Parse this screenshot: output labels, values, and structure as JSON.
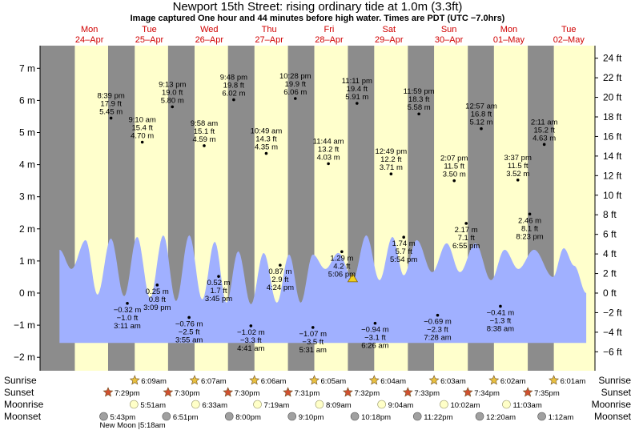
{
  "header": {
    "title": "Newport 15th Street: rising  ordinary tide at 1.0m (3.3ft)",
    "subtitle": "Image captured One hour and 44 minutes before high water. Times are PDT (UTC −7.0hrs)"
  },
  "colors": {
    "day": "#ffffcc",
    "night": "#8c8c8c",
    "tide": "#a0b0ff",
    "day_label": "#d00000",
    "sun_marker": "#e8c040",
    "sunset_marker": "#d05030",
    "moonrise_marker": "#ffffc8",
    "moonset_marker": "#a0a0a0",
    "now_marker": "#f0d020"
  },
  "days": [
    {
      "name": "Mon",
      "date": "24–Apr"
    },
    {
      "name": "Tue",
      "date": "25–Apr"
    },
    {
      "name": "Wed",
      "date": "26–Apr"
    },
    {
      "name": "Thu",
      "date": "27–Apr"
    },
    {
      "name": "Fri",
      "date": "28–Apr"
    },
    {
      "name": "Sat",
      "date": "29–Apr"
    },
    {
      "name": "Sun",
      "date": "30–Apr"
    },
    {
      "name": "Mon",
      "date": "01–May"
    },
    {
      "name": "Tue",
      "date": "02–May"
    }
  ],
  "chart_data": {
    "type": "area",
    "x_unit": "hours from 2023-04-24 00:00 PDT",
    "x_range": [
      0,
      216
    ],
    "y_left": {
      "unit": "m",
      "range": [
        -2.2,
        7.4
      ],
      "ticks": [
        -2,
        -1,
        0,
        1,
        2,
        3,
        4,
        5,
        6,
        7
      ],
      "tick_labels": [
        "−2 m",
        "−1 m",
        "0 m",
        "1 m",
        "2 m",
        "3 m",
        "4 m",
        "5 m",
        "6 m",
        "7 m"
      ]
    },
    "y_right": {
      "unit": "ft",
      "ticks": [
        -6,
        -4,
        -2,
        0,
        2,
        4,
        6,
        8,
        10,
        12,
        14,
        16,
        18,
        20,
        22,
        24
      ],
      "tick_labels": [
        "−6 ft",
        "−4 ft",
        "−2 ft",
        "0 ft",
        "2 ft",
        "4 ft",
        "6 ft",
        "8 ft",
        "10 ft",
        "12 ft",
        "14 ft",
        "16 ft",
        "18 ft",
        "20 ft",
        "22 ft",
        "24 ft"
      ]
    },
    "grid": false,
    "extremes": [
      {
        "time": "8:39 pm",
        "hour": 20.65,
        "m": 5.45,
        "ft": "17.9 ft",
        "m_label": "5.45 m"
      },
      {
        "time": "3:11 am",
        "hour": 27.18,
        "m": -0.32,
        "ft": "−1.0 ft",
        "m_label": "−0.32 m"
      },
      {
        "time": "9:10 am",
        "hour": 33.17,
        "m": 4.7,
        "ft": "15.4 ft",
        "m_label": "4.70 m"
      },
      {
        "time": "3:09 pm",
        "hour": 39.15,
        "m": 0.25,
        "ft": "0.8 ft",
        "m_label": "0.25 m"
      },
      {
        "time": "9:13 pm",
        "hour": 45.22,
        "m": 5.8,
        "ft": "19.0 ft",
        "m_label": "5.80 m"
      },
      {
        "time": "3:55 am",
        "hour": 51.92,
        "m": -0.76,
        "ft": "−2.5 ft",
        "m_label": "−0.76 m"
      },
      {
        "time": "9:58 am",
        "hour": 57.97,
        "m": 4.59,
        "ft": "15.1 ft",
        "m_label": "4.59 m"
      },
      {
        "time": "3:45 pm",
        "hour": 63.75,
        "m": 0.52,
        "ft": "1.7 ft",
        "m_label": "0.52 m"
      },
      {
        "time": "9:48 pm",
        "hour": 69.8,
        "m": 6.02,
        "ft": "19.8 ft",
        "m_label": "6.02 m"
      },
      {
        "time": "4:41 am",
        "hour": 76.68,
        "m": -1.02,
        "ft": "−3.3 ft",
        "m_label": "−1.02 m"
      },
      {
        "time": "10:49 am",
        "hour": 82.82,
        "m": 4.35,
        "ft": "14.3 ft",
        "m_label": "4.35 m"
      },
      {
        "time": "4:24 pm",
        "hour": 88.4,
        "m": 0.87,
        "ft": "2.9 ft",
        "m_label": "0.87 m"
      },
      {
        "time": "10:28 pm",
        "hour": 94.47,
        "m": 6.06,
        "ft": "19.9 ft",
        "m_label": "6.06 m"
      },
      {
        "time": "5:31 am",
        "hour": 101.52,
        "m": -1.07,
        "ft": "−3.5 ft",
        "m_label": "−1.07 m"
      },
      {
        "time": "11:44 am",
        "hour": 107.73,
        "m": 4.03,
        "ft": "13.2 ft",
        "m_label": "4.03 m"
      },
      {
        "time": "5:06 pm",
        "hour": 113.1,
        "m": 1.29,
        "ft": "4.2 ft",
        "m_label": "1.29 m"
      },
      {
        "time": "11:11 pm",
        "hour": 119.18,
        "m": 5.91,
        "ft": "19.4 ft",
        "m_label": "5.91 m"
      },
      {
        "time": "6:26 am",
        "hour": 126.43,
        "m": -0.94,
        "ft": "−3.1 ft",
        "m_label": "−0.94 m"
      },
      {
        "time": "12:49 pm",
        "hour": 132.82,
        "m": 3.71,
        "ft": "12.2 ft",
        "m_label": "3.71 m"
      },
      {
        "time": "5:54 pm",
        "hour": 137.9,
        "m": 1.74,
        "ft": "5.7 ft",
        "m_label": "1.74 m"
      },
      {
        "time": "11:59 pm",
        "hour": 143.98,
        "m": 5.58,
        "ft": "18.3 ft",
        "m_label": "5.58 m"
      },
      {
        "time": "7:28 am",
        "hour": 151.47,
        "m": -0.69,
        "ft": "−2.3 ft",
        "m_label": "−0.69 m"
      },
      {
        "time": "2:07 pm",
        "hour": 158.12,
        "m": 3.5,
        "ft": "11.5 ft",
        "m_label": "3.50 m"
      },
      {
        "time": "6:55 pm",
        "hour": 162.92,
        "m": 2.17,
        "ft": "7.1 ft",
        "m_label": "2.17 m"
      },
      {
        "time": "12:57 am",
        "hour": 168.95,
        "m": 5.12,
        "ft": "16.8 ft",
        "m_label": "5.12 m"
      },
      {
        "time": "8:38 am",
        "hour": 176.63,
        "m": -0.41,
        "ft": "−1.3 ft",
        "m_label": "−0.41 m"
      },
      {
        "time": "3:37 pm",
        "hour": 183.62,
        "m": 3.52,
        "ft": "11.5 ft",
        "m_label": "3.52 m"
      },
      {
        "time": "8:23 pm",
        "hour": 188.38,
        "m": 2.46,
        "ft": "8.1 ft",
        "m_label": "2.46 m"
      },
      {
        "time": "2:11 am",
        "hour": 194.18,
        "m": 4.63,
        "ft": "15.2 ft",
        "m_label": "4.63 m"
      }
    ],
    "now_hour": 117.45,
    "curve": {
      "times": [
        0,
        4.8,
        10.5,
        15.2,
        20.6,
        25.9,
        31.1,
        36.3,
        41.6,
        46.7,
        52.0,
        57.2,
        62.2,
        66.9,
        71.6,
        76.7,
        81.8,
        87.1,
        92.0,
        96.6,
        101.5,
        106.5,
        111.7,
        117.6,
        122.9,
        128.2,
        133.4,
        137.9,
        143.1,
        149.3,
        155.1,
        160.4,
        166.6,
        172.9,
        178.3,
        183.8,
        190.1,
        197.7,
        202.0,
        206.2,
        211.0
      ],
      "levels": [
        1.35,
        0.75,
        1.65,
        -0.05,
        1.7,
        -0.1,
        1.75,
        -0.15,
        1.8,
        -0.25,
        1.8,
        -0.2,
        1.6,
        -0.3,
        1.3,
        -0.35,
        1.25,
        -0.3,
        1.2,
        -0.3,
        1.2,
        0.75,
        1.25,
        0.45,
        1.8,
        0.4,
        1.75,
        0.55,
        1.65,
        0.65,
        1.55,
        0.65,
        1.55,
        0.4,
        1.35,
        0.75,
        1.35,
        0.5,
        1.4,
        0.85,
        0.0
      ],
      "floor": -1.55
    }
  },
  "night_bands": [
    [
      -200,
      6.15
    ],
    [
      19.48,
      30.15
    ],
    [
      43.5,
      54.12
    ],
    [
      67.5,
      78.1
    ],
    [
      91.52,
      102.08
    ],
    [
      115.53,
      126.07
    ],
    [
      139.55,
      150.05
    ],
    [
      163.57,
      174.03
    ],
    [
      187.58,
      198.02
    ]
  ],
  "rows": {
    "labels": [
      "Sunrise",
      "Sunset",
      "Moonrise",
      "Moonset"
    ],
    "sunrise": [
      {
        "hour": 30.15,
        "label": "6:09am"
      },
      {
        "hour": 54.12,
        "label": "6:07am"
      },
      {
        "hour": 78.1,
        "label": "6:06am"
      },
      {
        "hour": 102.08,
        "label": "6:05am"
      },
      {
        "hour": 126.07,
        "label": "6:04am"
      },
      {
        "hour": 150.05,
        "label": "6:03am"
      },
      {
        "hour": 174.03,
        "label": "6:02am"
      },
      {
        "hour": 198.02,
        "label": "6:01am"
      }
    ],
    "sunset": [
      {
        "hour": 19.48,
        "label": "7:29pm"
      },
      {
        "hour": 43.5,
        "label": "7:30pm"
      },
      {
        "hour": 67.5,
        "label": "7:30pm"
      },
      {
        "hour": 91.52,
        "label": "7:31pm"
      },
      {
        "hour": 115.53,
        "label": "7:32pm"
      },
      {
        "hour": 139.55,
        "label": "7:33pm"
      },
      {
        "hour": 163.57,
        "label": "7:34pm"
      },
      {
        "hour": 187.58,
        "label": "7:35pm"
      }
    ],
    "moonrise": [
      {
        "hour": 29.85,
        "label": "5:51am"
      },
      {
        "hour": 54.55,
        "label": "6:33am"
      },
      {
        "hour": 79.32,
        "label": "7:19am"
      },
      {
        "hour": 104.15,
        "label": "8:09am"
      },
      {
        "hour": 129.07,
        "label": "9:04am"
      },
      {
        "hour": 154.03,
        "label": "10:02am"
      },
      {
        "hour": 179.05,
        "label": "11:03am"
      }
    ],
    "moonset": [
      {
        "hour": 17.72,
        "label": "5:43pm"
      },
      {
        "hour": 42.85,
        "label": "6:51pm"
      },
      {
        "hour": 68.0,
        "label": "8:00pm"
      },
      {
        "hour": 93.17,
        "label": "9:10pm"
      },
      {
        "hour": 118.3,
        "label": "10:18pm"
      },
      {
        "hour": 143.37,
        "label": "11:22pm"
      },
      {
        "hour": 168.33,
        "label": "12:20am"
      },
      {
        "hour": 193.2,
        "label": "1:12am"
      }
    ],
    "new_moon": {
      "hour": 29.3,
      "label": "New Moon |5:18am"
    }
  }
}
